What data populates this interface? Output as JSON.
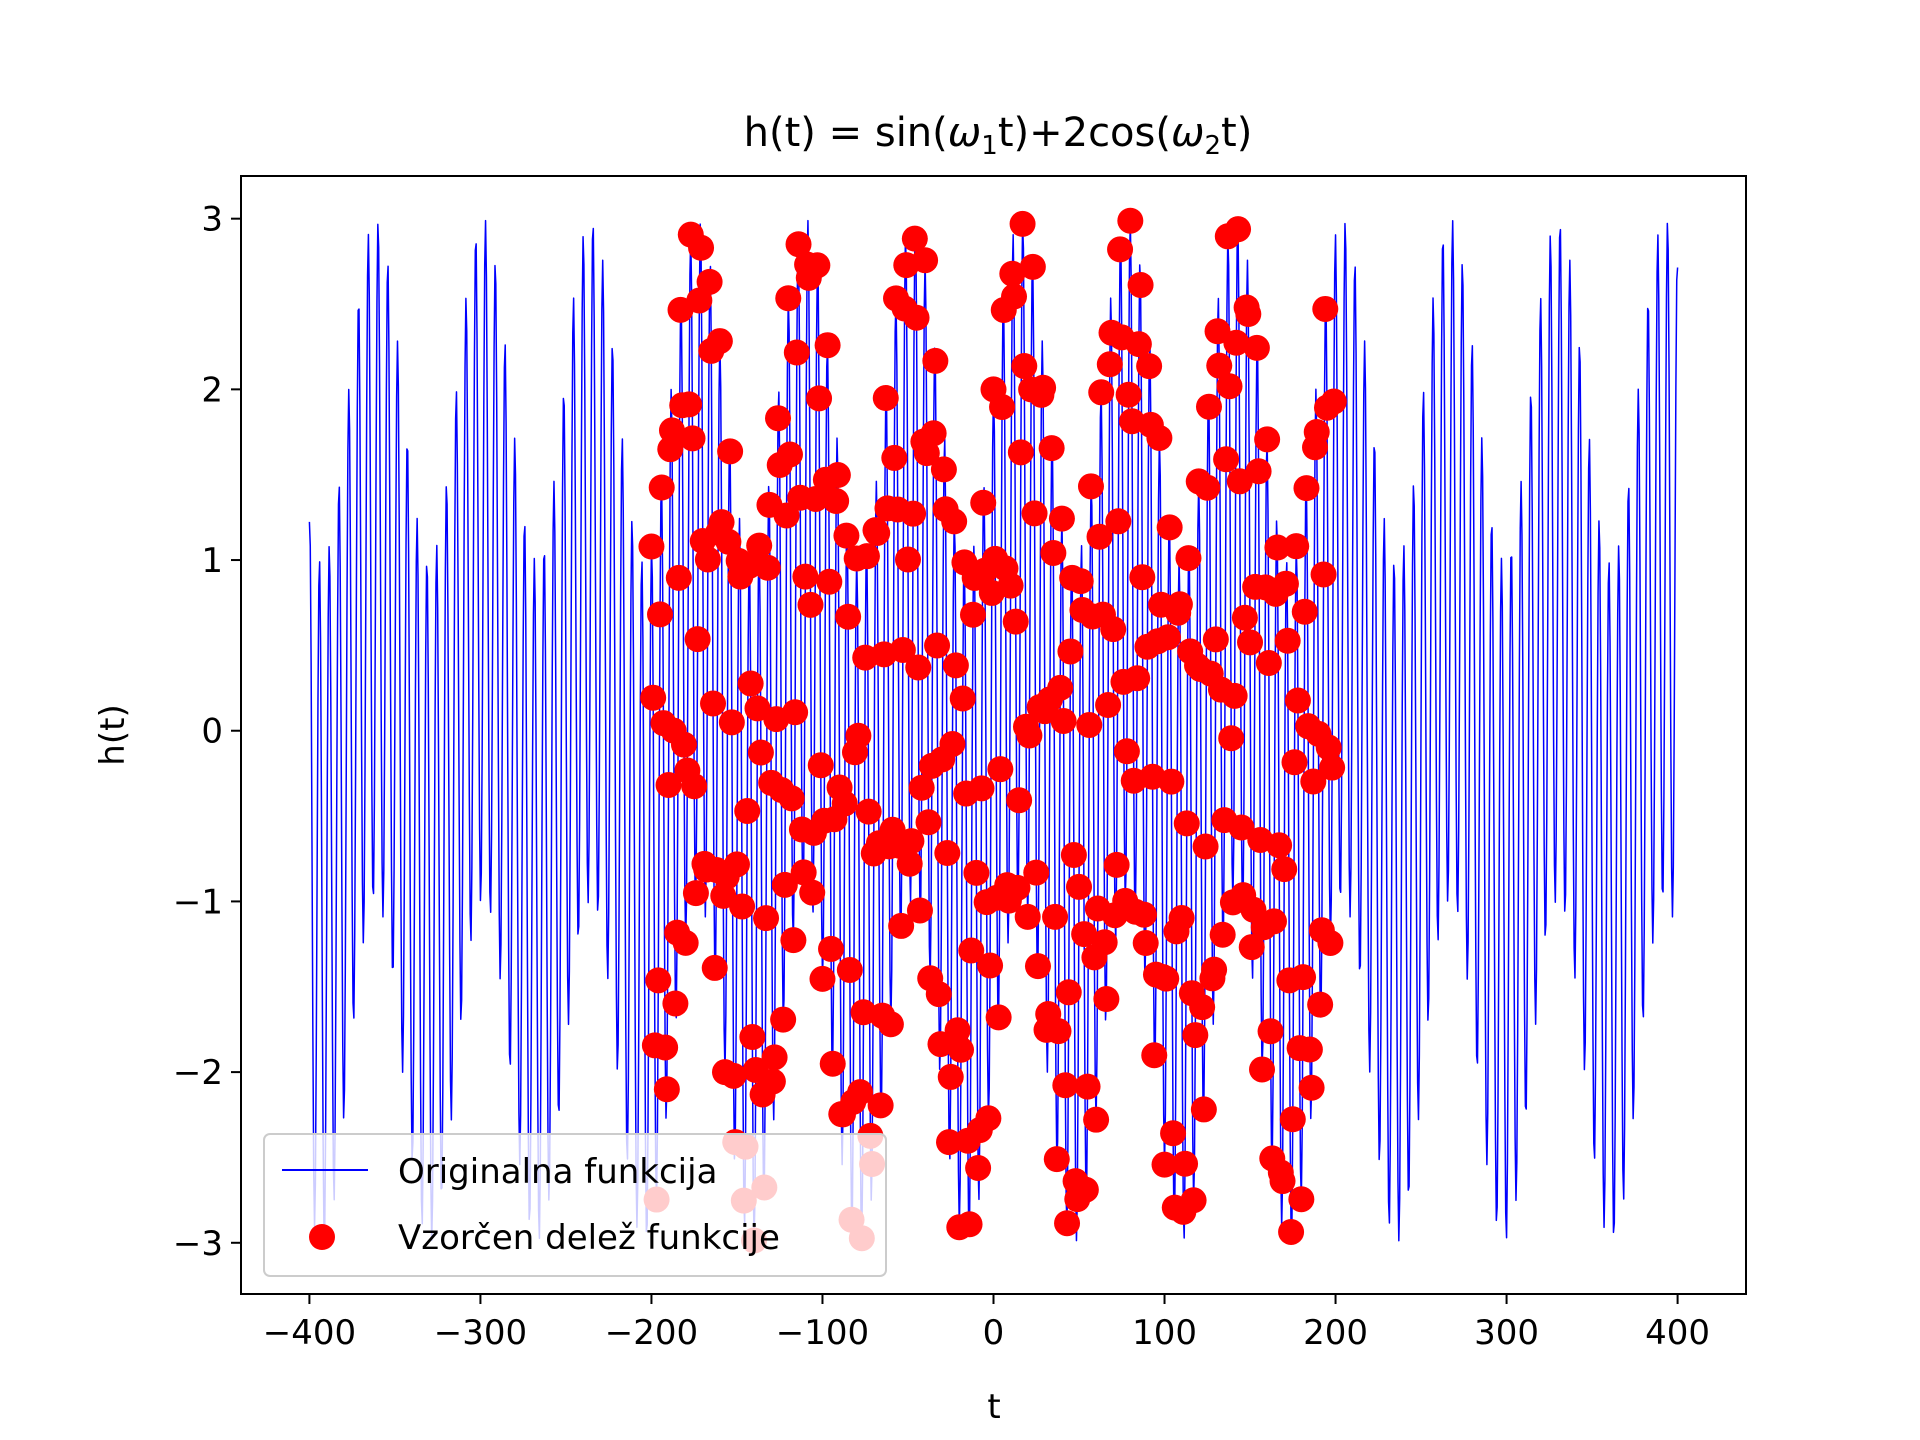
{
  "chart_data": {
    "type": "line",
    "title_main": "h(t) = sin(",
    "title_omega": "ω",
    "title_sub1": "1",
    "title_mid": "t)+2cos(",
    "title_sub2": "2",
    "title_end": "t)",
    "xlabel": "t",
    "ylabel": "h(t)",
    "xlim": [
      -440,
      440
    ],
    "ylim": [
      -3.3,
      3.25
    ],
    "xticks": [
      -400,
      -300,
      -200,
      -100,
      0,
      100,
      200,
      300,
      400
    ],
    "xtick_labels": [
      "−400",
      "−300",
      "−200",
      "−100",
      "0",
      "100",
      "200",
      "300",
      "400"
    ],
    "yticks": [
      -3,
      -2,
      -1,
      0,
      1,
      2,
      3
    ],
    "ytick_labels": [
      "−3",
      "−2",
      "−1",
      "0",
      "1",
      "2",
      "3"
    ],
    "grid": false,
    "legend_position": "lower-left",
    "series": [
      {
        "name": "Originalna funkcija",
        "kind": "line",
        "color": "#0000ff",
        "formula": "sin(0.1*t) + 2*cos(1.1*t)",
        "t_range": [
          -400,
          400
        ],
        "t_step": 0.5
      },
      {
        "name": "Vzorčen delež funkcije",
        "kind": "scatter",
        "color": "#ff0000",
        "formula": "sin(0.1*t) + 2*cos(1.1*t)",
        "t_range": [
          -200,
          199
        ],
        "t_step": 1
      }
    ]
  }
}
